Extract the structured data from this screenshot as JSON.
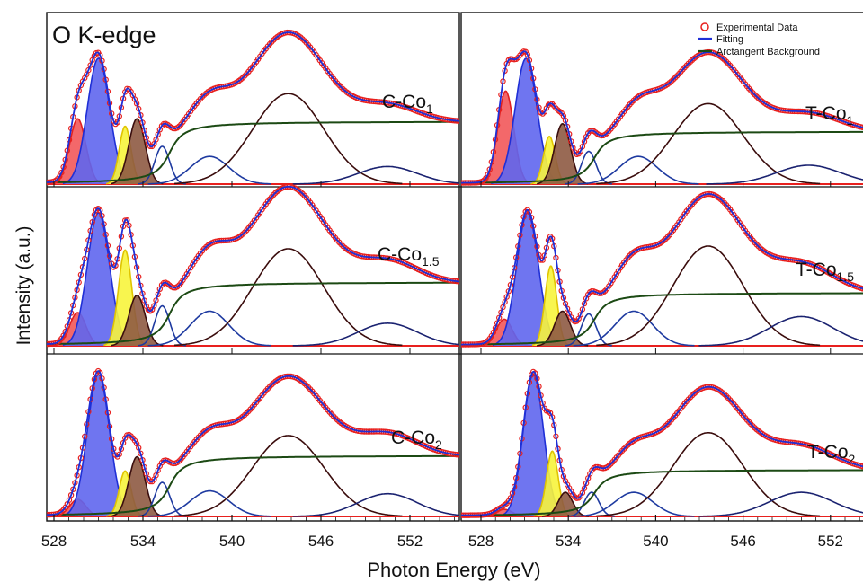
{
  "chart_data": {
    "type": "line",
    "title": "O K-edge",
    "xlabel": "Photon Energy (eV)",
    "ylabel": "Intensity (a.u.)",
    "xlim": [
      526.5,
      558
    ],
    "xticks": [
      528,
      534,
      540,
      546,
      552
    ],
    "grid": false,
    "legend": {
      "placement": "top-right",
      "entries": [
        {
          "label": "Experimental Data",
          "marker": "circle",
          "color": "#e8201e"
        },
        {
          "label": "Fitting",
          "marker": "line",
          "color": "#1f2fd6"
        },
        {
          "label": "Arctangent Background",
          "marker": "line",
          "color": "#1c4a14"
        }
      ]
    },
    "colors": {
      "data": "#e8201e",
      "fit": "#1f2fd6",
      "background": "#1c4a14",
      "baseline": "#e8201e",
      "peak_fills": [
        "#f2585a",
        "#5f66ee",
        "#f7f43c",
        "#8e5a43",
        "#1e3aa0",
        "#2c3ca8",
        "#3a0c0c",
        "#1a2270"
      ],
      "peak_lines": [
        "#e02020",
        "#1f2fd6",
        "#e0c400",
        "#3a0e0e",
        "#1e3aa0",
        "#1e3aa0",
        "#3a0c0c",
        "#1a2270"
      ],
      "peak_filled": [
        true,
        true,
        true,
        true,
        false,
        false,
        false,
        false
      ]
    },
    "panels": [
      {
        "label_main": "C-Co",
        "label_sub": "1",
        "background": {
          "step": 0.5,
          "center": 535.8,
          "width": 0.7
        },
        "peaks": [
          {
            "center": 529.6,
            "sigma": 0.55,
            "height": 0.52
          },
          {
            "center": 531.0,
            "sigma": 0.75,
            "height": 1.0
          },
          {
            "center": 532.8,
            "sigma": 0.4,
            "height": 0.46
          },
          {
            "center": 533.6,
            "sigma": 0.55,
            "height": 0.52
          },
          {
            "center": 535.3,
            "sigma": 0.5,
            "height": 0.3
          },
          {
            "center": 538.5,
            "sigma": 1.3,
            "height": 0.22
          },
          {
            "center": 543.8,
            "sigma": 2.4,
            "height": 0.72
          },
          {
            "center": 550.5,
            "sigma": 2.0,
            "height": 0.14
          }
        ]
      },
      {
        "label_main": "T-Co",
        "label_sub": "1",
        "background": {
          "step": 0.42,
          "center": 535.8,
          "width": 0.7
        },
        "peaks": [
          {
            "center": 529.7,
            "sigma": 0.55,
            "height": 0.74
          },
          {
            "center": 531.1,
            "sigma": 0.75,
            "height": 1.0
          },
          {
            "center": 532.7,
            "sigma": 0.4,
            "height": 0.38
          },
          {
            "center": 533.6,
            "sigma": 0.55,
            "height": 0.48
          },
          {
            "center": 535.4,
            "sigma": 0.5,
            "height": 0.26
          },
          {
            "center": 538.8,
            "sigma": 1.3,
            "height": 0.22
          },
          {
            "center": 543.6,
            "sigma": 2.4,
            "height": 0.64
          },
          {
            "center": 550.5,
            "sigma": 2.2,
            "height": 0.15
          }
        ]
      },
      {
        "label_main": "C-Co",
        "label_sub": "1.5",
        "background": {
          "step": 0.48,
          "center": 535.8,
          "width": 0.7
        },
        "peaks": [
          {
            "center": 529.6,
            "sigma": 0.55,
            "height": 0.25
          },
          {
            "center": 531.0,
            "sigma": 0.75,
            "height": 1.0
          },
          {
            "center": 532.8,
            "sigma": 0.45,
            "height": 0.72
          },
          {
            "center": 533.6,
            "sigma": 0.55,
            "height": 0.38
          },
          {
            "center": 535.3,
            "sigma": 0.5,
            "height": 0.3
          },
          {
            "center": 538.5,
            "sigma": 1.3,
            "height": 0.26
          },
          {
            "center": 543.8,
            "sigma": 2.4,
            "height": 0.73
          },
          {
            "center": 550.5,
            "sigma": 2.0,
            "height": 0.17
          }
        ]
      },
      {
        "label_main": "T-Co",
        "label_sub": "1.5",
        "background": {
          "step": 0.4,
          "center": 535.8,
          "width": 0.7
        },
        "peaks": [
          {
            "center": 529.6,
            "sigma": 0.55,
            "height": 0.2
          },
          {
            "center": 531.2,
            "sigma": 0.75,
            "height": 1.0
          },
          {
            "center": 532.8,
            "sigma": 0.4,
            "height": 0.6
          },
          {
            "center": 533.6,
            "sigma": 0.55,
            "height": 0.26
          },
          {
            "center": 535.4,
            "sigma": 0.5,
            "height": 0.24
          },
          {
            "center": 538.5,
            "sigma": 1.3,
            "height": 0.26
          },
          {
            "center": 543.6,
            "sigma": 2.4,
            "height": 0.75
          },
          {
            "center": 550.0,
            "sigma": 2.2,
            "height": 0.22
          }
        ]
      },
      {
        "label_main": "C-Co",
        "label_sub": "2",
        "background": {
          "step": 0.43,
          "center": 535.8,
          "width": 0.7
        },
        "peaks": [
          {
            "center": 529.6,
            "sigma": 0.55,
            "height": 0.12
          },
          {
            "center": 531.0,
            "sigma": 0.75,
            "height": 1.0
          },
          {
            "center": 532.8,
            "sigma": 0.4,
            "height": 0.32
          },
          {
            "center": 533.6,
            "sigma": 0.55,
            "height": 0.42
          },
          {
            "center": 535.3,
            "sigma": 0.5,
            "height": 0.24
          },
          {
            "center": 538.5,
            "sigma": 1.3,
            "height": 0.18
          },
          {
            "center": 543.8,
            "sigma": 2.4,
            "height": 0.57
          },
          {
            "center": 550.5,
            "sigma": 2.0,
            "height": 0.16
          }
        ]
      },
      {
        "label_main": "T-Co",
        "label_sub": "2",
        "background": {
          "step": 0.33,
          "center": 535.8,
          "width": 0.7
        },
        "peaks": [
          {
            "center": 529.6,
            "sigma": 0.55,
            "height": 0.05
          },
          {
            "center": 531.6,
            "sigma": 0.7,
            "height": 1.0
          },
          {
            "center": 532.9,
            "sigma": 0.4,
            "height": 0.46
          },
          {
            "center": 533.8,
            "sigma": 0.5,
            "height": 0.17
          },
          {
            "center": 535.6,
            "sigma": 0.5,
            "height": 0.17
          },
          {
            "center": 538.5,
            "sigma": 1.3,
            "height": 0.17
          },
          {
            "center": 543.6,
            "sigma": 2.4,
            "height": 0.59
          },
          {
            "center": 550.0,
            "sigma": 2.2,
            "height": 0.17
          }
        ]
      }
    ]
  }
}
